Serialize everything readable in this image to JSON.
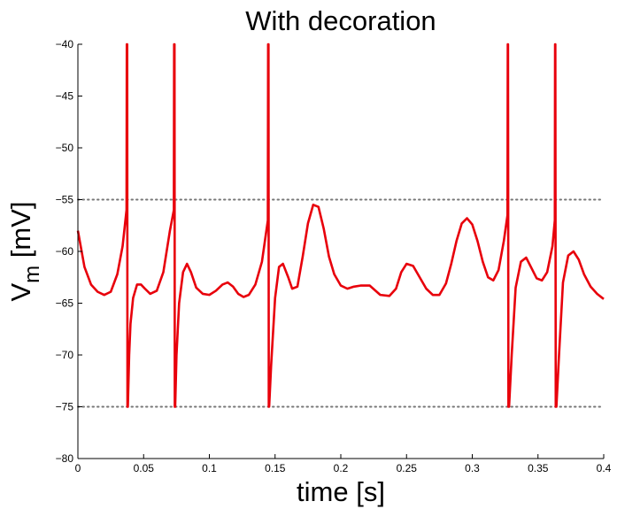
{
  "chart_data": {
    "type": "line",
    "title": "With decoration",
    "xlabel": "time [s]",
    "ylabel_main": "V",
    "ylabel_sub": "m",
    "ylabel_unit": " [mV]",
    "xlim": [
      0,
      0.4
    ],
    "ylim": [
      -80,
      -40
    ],
    "x_ticks": [
      0,
      0.05,
      0.1,
      0.15,
      0.2,
      0.25,
      0.3,
      0.35,
      0.4
    ],
    "x_tick_labels": [
      "0",
      "0.05",
      "0.1",
      "0.15",
      "0.2",
      "0.25",
      "0.3",
      "0.35",
      "0.4"
    ],
    "y_ticks": [
      -80,
      -75,
      -70,
      -65,
      -60,
      -55,
      -50,
      -45,
      -40
    ],
    "y_tick_labels": [
      "−80",
      "−75",
      "−70",
      "−65",
      "−60",
      "−55",
      "−50",
      "−45",
      "−40"
    ],
    "grid": false,
    "threshold_lines": [
      -55,
      -75
    ],
    "threshold_style": "dotted",
    "series": [
      {
        "color": "#e8000b",
        "x": [
          0,
          0.005,
          0.01,
          0.015,
          0.02,
          0.025,
          0.03,
          0.034,
          0.037,
          0.0372,
          0.0375,
          0.0377,
          0.038,
          0.039,
          0.04,
          0.042,
          0.045,
          0.048,
          0.051,
          0.055,
          0.06,
          0.065,
          0.07,
          0.073,
          0.0732,
          0.0735,
          0.0737,
          0.074,
          0.075,
          0.077,
          0.08,
          0.083,
          0.086,
          0.09,
          0.095,
          0.1,
          0.105,
          0.11,
          0.114,
          0.118,
          0.122,
          0.126,
          0.13,
          0.135,
          0.14,
          0.1445,
          0.1447,
          0.145,
          0.1452,
          0.1455,
          0.147,
          0.15,
          0.153,
          0.156,
          0.16,
          0.163,
          0.167,
          0.171,
          0.175,
          0.179,
          0.183,
          0.187,
          0.191,
          0.195,
          0.2,
          0.205,
          0.21,
          0.215,
          0.222,
          0.23,
          0.237,
          0.242,
          0.246,
          0.25,
          0.255,
          0.26,
          0.265,
          0.27,
          0.275,
          0.28,
          0.284,
          0.288,
          0.292,
          0.296,
          0.3,
          0.304,
          0.308,
          0.312,
          0.316,
          0.32,
          0.324,
          0.3268,
          0.327,
          0.3272,
          0.3275,
          0.328,
          0.33,
          0.333,
          0.337,
          0.341,
          0.345,
          0.349,
          0.353,
          0.357,
          0.361,
          0.3628,
          0.363,
          0.3632,
          0.3635,
          0.364,
          0.366,
          0.369,
          0.373,
          0.377,
          0.381,
          0.385,
          0.39,
          0.395,
          0.4
        ],
        "y": [
          -58,
          -61.5,
          -63.2,
          -63.9,
          -64.2,
          -63.9,
          -62.2,
          -59.5,
          -56,
          -40,
          -40,
          -75,
          -75,
          -70,
          -67,
          -64.5,
          -63.2,
          -63.2,
          -63.6,
          -64.1,
          -63.8,
          -62,
          -58,
          -56,
          -40,
          -40,
          -75,
          -75,
          -70,
          -65,
          -62,
          -61.2,
          -62,
          -63.5,
          -64.1,
          -64.2,
          -63.8,
          -63.2,
          -63,
          -63.4,
          -64.1,
          -64.4,
          -64.2,
          -63.2,
          -61,
          -57,
          -40,
          -40,
          -75,
          -75,
          -71,
          -64.5,
          -61.5,
          -61.2,
          -62.5,
          -63.6,
          -63.4,
          -60.5,
          -57.3,
          -55.5,
          -55.7,
          -57.8,
          -60.5,
          -62.2,
          -63.3,
          -63.6,
          -63.4,
          -63.3,
          -63.3,
          -64.2,
          -64.3,
          -63.6,
          -62,
          -61.2,
          -61.4,
          -62.5,
          -63.6,
          -64.2,
          -64.2,
          -63.1,
          -61.2,
          -59,
          -57.3,
          -56.8,
          -57.4,
          -59,
          -61,
          -62.5,
          -62.8,
          -61.8,
          -59,
          -56.5,
          -40,
          -40,
          -75,
          -75,
          -70,
          -63.5,
          -61,
          -60.6,
          -61.6,
          -62.6,
          -62.8,
          -62,
          -59.5,
          -57,
          -40,
          -40,
          -75,
          -75,
          -70,
          -63,
          -60.4,
          -60,
          -60.8,
          -62.2,
          -63.4,
          -64.1,
          -64.6
        ]
      }
    ]
  }
}
